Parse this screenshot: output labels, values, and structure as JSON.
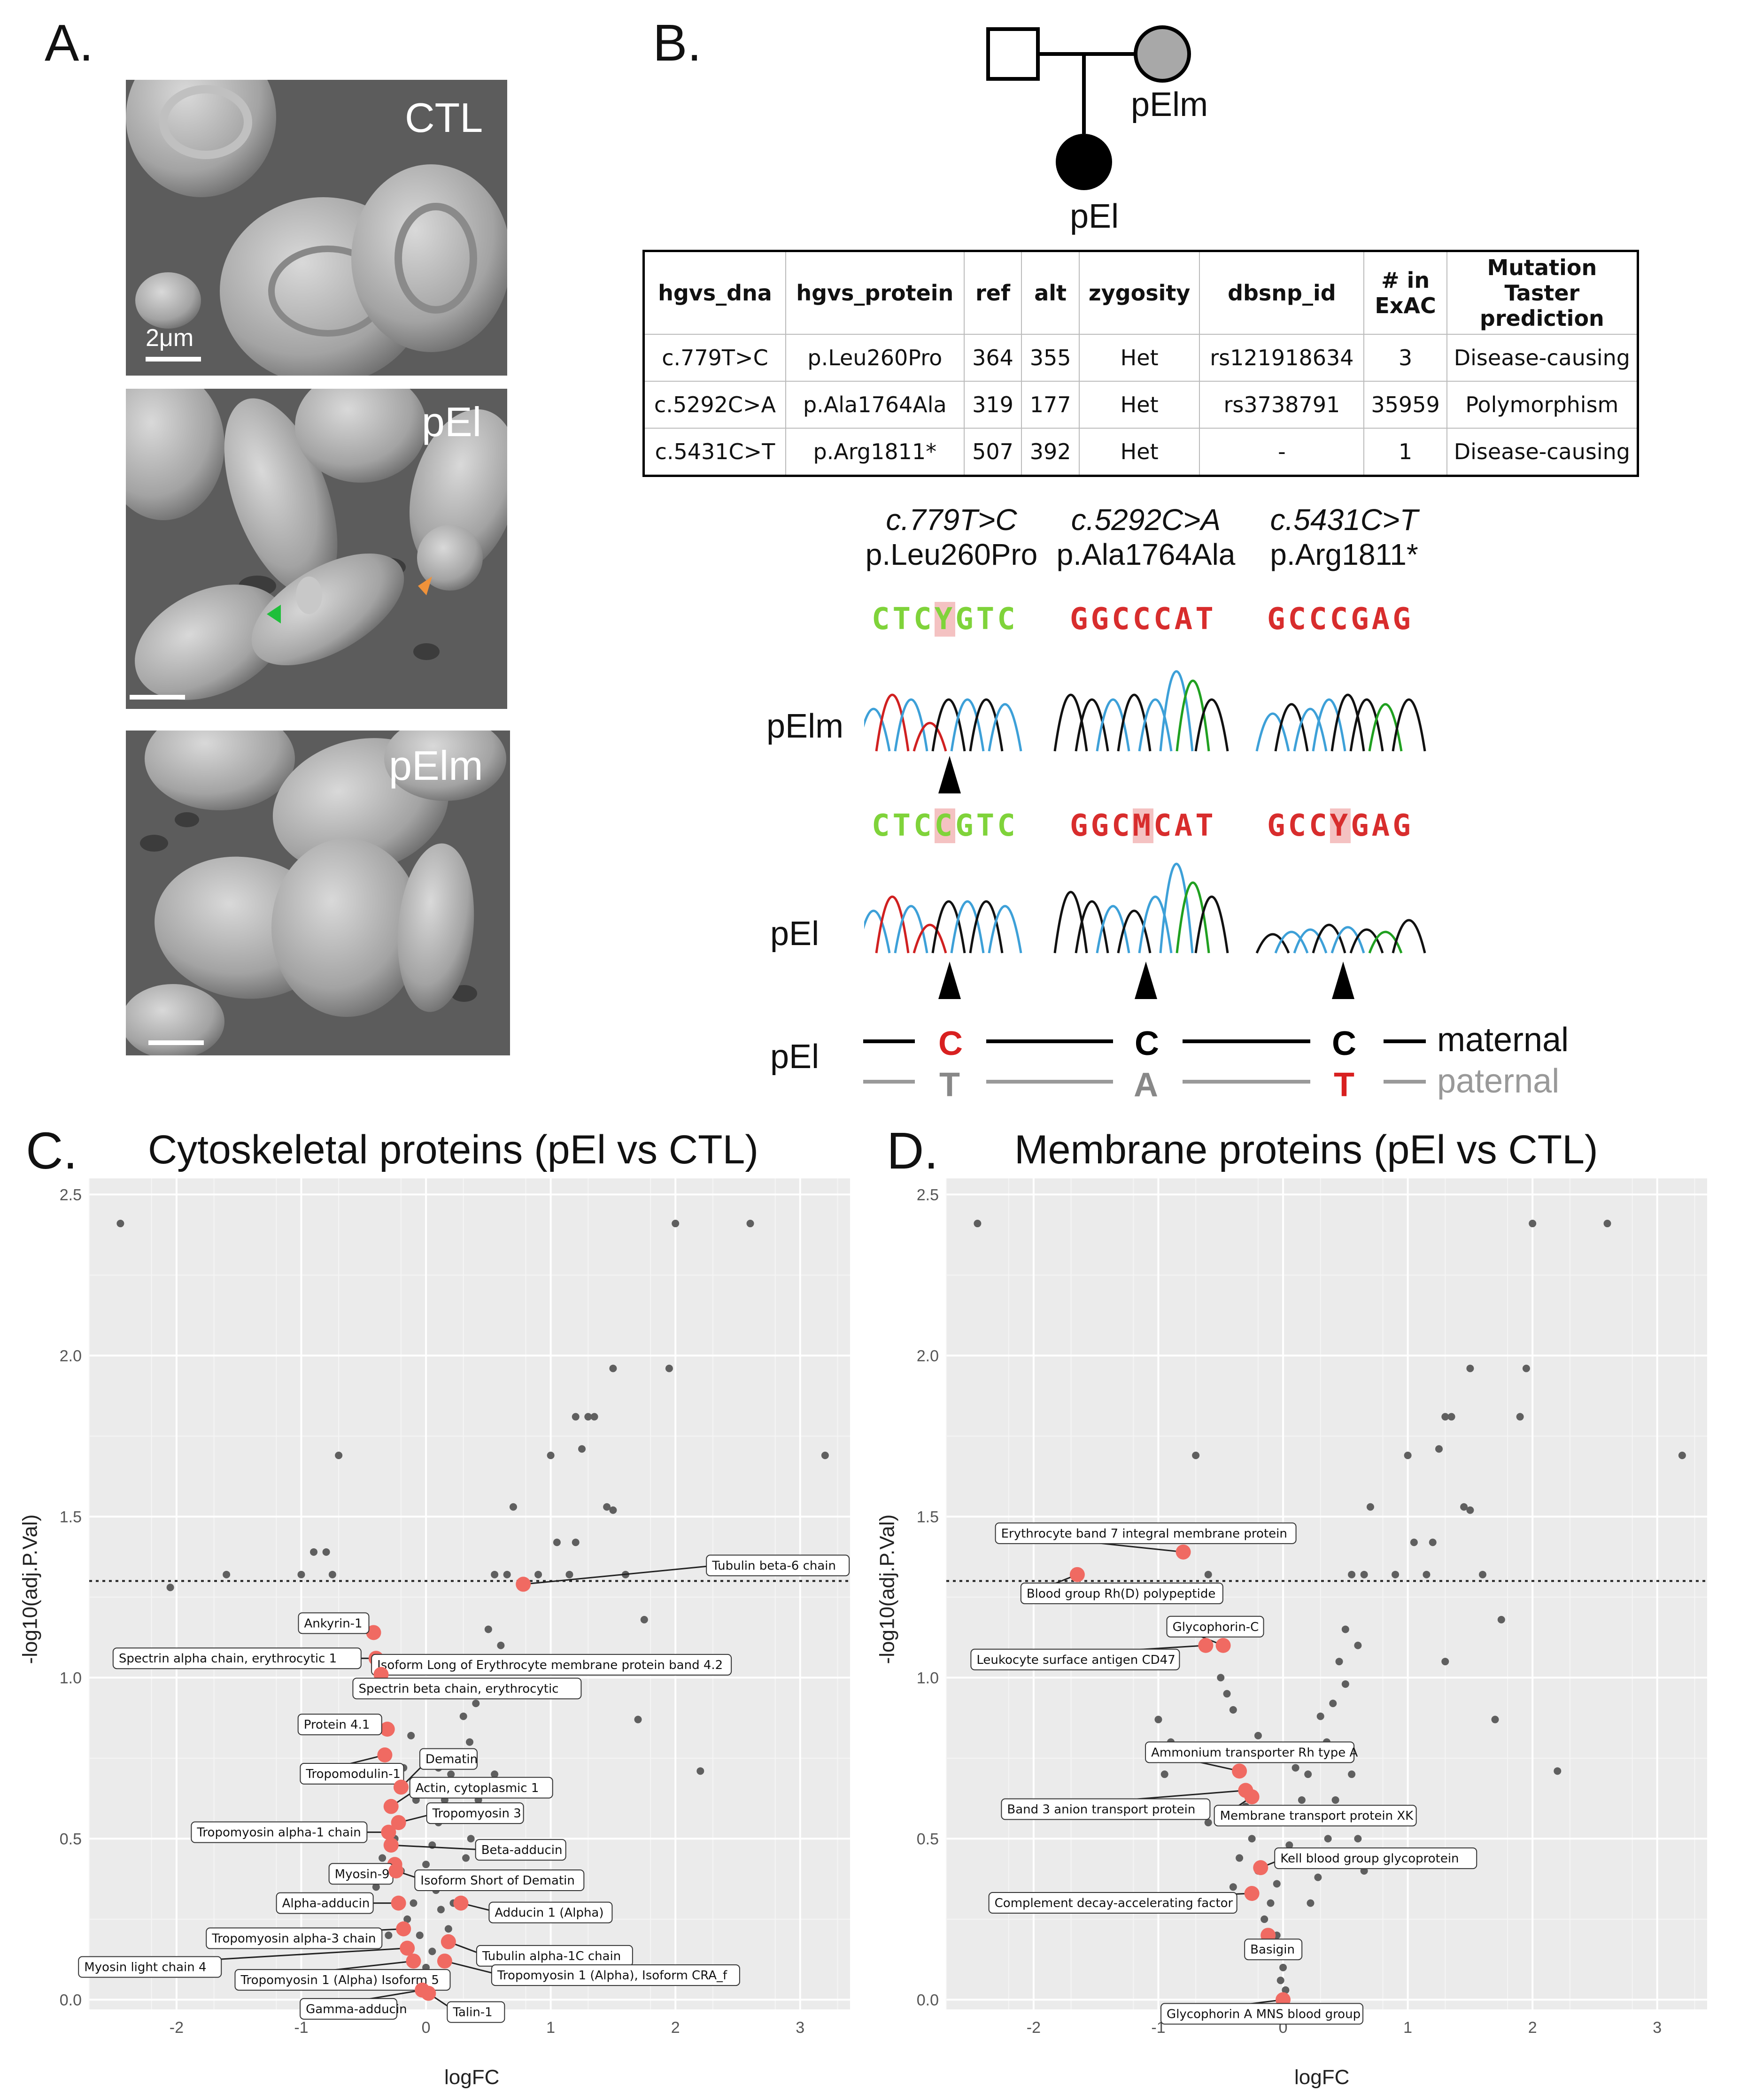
{
  "panels": {
    "a": "A.",
    "b": "B.",
    "c": "C.",
    "d": "D."
  },
  "panel_a": {
    "sem_labels": [
      "CTL",
      "pEl",
      "pElm"
    ],
    "scale_label": "2μm"
  },
  "pedigree": {
    "mother_label": "pElm",
    "proband_label": "pEl"
  },
  "variant_table": {
    "headers": [
      "hgvs_dna",
      "hgvs_protein",
      "ref",
      "alt",
      "zygosity",
      "dbsnp_id",
      "# in ExAC",
      "Mutation Taster prediction"
    ],
    "rows": [
      [
        "c.779T>C",
        "p.Leu260Pro",
        "364",
        "355",
        "Het",
        "rs121918634",
        "3",
        "Disease-causing"
      ],
      [
        "c.5292C>A",
        "p.Ala1764Ala",
        "319",
        "177",
        "Het",
        "rs3738791",
        "35959",
        "Polymorphism"
      ],
      [
        "c.5431C>T",
        "p.Arg1811*",
        "507",
        "392",
        "Het",
        "-",
        "1",
        "Disease-causing"
      ]
    ]
  },
  "variants": [
    {
      "dna": "c.779T>C",
      "protein": "p.Leu260Pro",
      "seq_pelm": [
        "CTC",
        "Y",
        "GTC"
      ],
      "seq_pel": [
        "CTC",
        "C",
        "GTC"
      ]
    },
    {
      "dna": "c.5292C>A",
      "protein": "p.Ala1764Ala",
      "seq_pelm": [
        "GGC",
        "C",
        "CAT"
      ],
      "seq_pel": [
        "GGC",
        "M",
        "CAT"
      ]
    },
    {
      "dna": "c.5431C>T",
      "protein": "p.Arg1811*",
      "seq_pelm": [
        "GCC",
        "C",
        "GAG"
      ],
      "seq_pel": [
        "GCC",
        "Y",
        "GAG"
      ]
    }
  ],
  "chromatogram_rows": {
    "row1": "pElm",
    "row2": "pEl"
  },
  "haplotype": {
    "label": "pEl",
    "maternal": [
      "C",
      "C",
      "C"
    ],
    "paternal": [
      "T",
      "A",
      "T"
    ],
    "maternal_label": "maternal",
    "paternal_label": "paternal"
  },
  "chart_data": [
    {
      "type": "scatter",
      "title": "Cytoskeletal proteins (pEl vs CTL)",
      "xlabel": "logFC",
      "ylabel": "-log10(adj.P.Val)",
      "xlim": [
        -2.7,
        3.4
      ],
      "ylim": [
        -0.03,
        2.55
      ],
      "xticks": [
        -2,
        -1,
        0,
        1,
        2,
        3
      ],
      "yticks": [
        0.0,
        0.5,
        1.0,
        1.5,
        2.0,
        2.5
      ],
      "threshold": 1.3,
      "background_points": [
        [
          -2.45,
          2.41
        ],
        [
          2.0,
          2.41
        ],
        [
          2.6,
          2.41
        ],
        [
          -0.7,
          1.69
        ],
        [
          1.0,
          1.69
        ],
        [
          3.2,
          1.69
        ],
        [
          1.5,
          1.96
        ],
        [
          1.95,
          1.96
        ],
        [
          1.3,
          1.81
        ],
        [
          1.35,
          1.81
        ],
        [
          1.25,
          1.71
        ],
        [
          1.2,
          1.81
        ],
        [
          1.45,
          1.53
        ],
        [
          1.5,
          1.52
        ],
        [
          0.7,
          1.53
        ],
        [
          1.05,
          1.42
        ],
        [
          1.2,
          1.42
        ],
        [
          0.55,
          1.32
        ],
        [
          0.65,
          1.32
        ],
        [
          0.9,
          1.32
        ],
        [
          1.15,
          1.32
        ],
        [
          1.6,
          1.32
        ],
        [
          -0.9,
          1.39
        ],
        [
          -0.8,
          1.39
        ],
        [
          -0.75,
          1.32
        ],
        [
          -1.0,
          1.32
        ],
        [
          -1.6,
          1.32
        ],
        [
          -2.05,
          1.28
        ],
        [
          1.75,
          1.18
        ],
        [
          1.9,
          1.05
        ],
        [
          1.7,
          0.87
        ],
        [
          2.2,
          0.71
        ],
        [
          0.5,
          1.15
        ],
        [
          0.6,
          1.1
        ],
        [
          0.45,
          1.05
        ],
        [
          0.5,
          0.98
        ],
        [
          0.4,
          0.92
        ],
        [
          0.3,
          0.88
        ],
        [
          0.35,
          0.8
        ],
        [
          0.25,
          0.75
        ],
        [
          0.2,
          0.7
        ],
        [
          0.15,
          0.62
        ],
        [
          0.1,
          0.55
        ],
        [
          0.05,
          0.48
        ],
        [
          0.0,
          0.42
        ],
        [
          -0.05,
          0.36
        ],
        [
          -0.1,
          0.3
        ],
        [
          -0.15,
          0.25
        ],
        [
          -0.05,
          0.2
        ],
        [
          0.05,
          0.15
        ],
        [
          0.0,
          0.1
        ],
        [
          -0.02,
          0.06
        ],
        [
          0.02,
          0.03
        ],
        [
          -0.2,
          0.4
        ],
        [
          -0.25,
          0.5
        ],
        [
          -0.3,
          0.6
        ],
        [
          -0.18,
          0.72
        ],
        [
          -0.12,
          0.82
        ],
        [
          0.08,
          0.34
        ],
        [
          0.12,
          0.28
        ],
        [
          0.18,
          0.22
        ],
        [
          0.22,
          0.3
        ],
        [
          0.28,
          0.38
        ],
        [
          0.32,
          0.44
        ],
        [
          0.36,
          0.5
        ],
        [
          -0.35,
          0.44
        ],
        [
          -0.4,
          0.35
        ],
        [
          -0.3,
          0.2
        ],
        [
          -0.08,
          0.62
        ],
        [
          0.1,
          0.72
        ],
        [
          0.42,
          0.62
        ],
        [
          0.55,
          0.7
        ]
      ],
      "highlighted": [
        {
          "x": 0.78,
          "y": 1.29,
          "label": "Tubulin beta-6 chain"
        },
        {
          "x": -0.42,
          "y": 1.14,
          "label": "Ankyrin-1"
        },
        {
          "x": -0.4,
          "y": 1.06,
          "label": "Spectrin alpha chain, erythrocytic 1"
        },
        {
          "x": -0.38,
          "y": 1.04,
          "label": "Isoform Long of Erythrocyte membrane protein band 4.2"
        },
        {
          "x": -0.36,
          "y": 1.01,
          "label": "Spectrin beta chain, erythrocytic"
        },
        {
          "x": -0.31,
          "y": 0.84,
          "label": "Protein 4.1"
        },
        {
          "x": -0.33,
          "y": 0.76,
          "label": "Tropomodulin-1"
        },
        {
          "x": -0.2,
          "y": 0.66,
          "label": "Dematin"
        },
        {
          "x": -0.28,
          "y": 0.6,
          "label": "Actin, cytoplasmic 1"
        },
        {
          "x": -0.22,
          "y": 0.55,
          "label": "Tropomyosin 3"
        },
        {
          "x": -0.3,
          "y": 0.52,
          "label": "Tropomyosin alpha-1 chain"
        },
        {
          "x": -0.28,
          "y": 0.48,
          "label": "Beta-adducin"
        },
        {
          "x": -0.25,
          "y": 0.42,
          "label": "Myosin-9"
        },
        {
          "x": -0.24,
          "y": 0.4,
          "label": "Isoform Short of Dematin"
        },
        {
          "x": 0.28,
          "y": 0.3,
          "label": "Adducin 1 (Alpha)"
        },
        {
          "x": -0.22,
          "y": 0.3,
          "label": "Alpha-adducin"
        },
        {
          "x": -0.18,
          "y": 0.22,
          "label": "Tropomyosin alpha-3 chain"
        },
        {
          "x": 0.18,
          "y": 0.18,
          "label": "Tubulin alpha-1C chain"
        },
        {
          "x": -0.15,
          "y": 0.16,
          "label": "Myosin light chain 4"
        },
        {
          "x": -0.1,
          "y": 0.12,
          "label": "Tropomyosin 1 (Alpha) Isoform 5"
        },
        {
          "x": 0.15,
          "y": 0.12,
          "label": "Tropomyosin 1 (Alpha), Isoform CRA_f"
        },
        {
          "x": -0.03,
          "y": 0.03,
          "label": "Gamma-adducin"
        },
        {
          "x": 0.02,
          "y": 0.02,
          "label": "Talin-1"
        }
      ]
    },
    {
      "type": "scatter",
      "title": "Membrane proteins (pEl vs CTL)",
      "xlabel": "logFC",
      "ylabel": "-log10(adj.P.Val)",
      "xlim": [
        -2.7,
        3.4
      ],
      "ylim": [
        -0.03,
        2.55
      ],
      "xticks": [
        -2,
        -1,
        0,
        1,
        2,
        3
      ],
      "yticks": [
        0.0,
        0.5,
        1.0,
        1.5,
        2.0,
        2.5
      ],
      "threshold": 1.3,
      "background_points": [
        [
          -2.45,
          2.41
        ],
        [
          2.0,
          2.41
        ],
        [
          2.6,
          2.41
        ],
        [
          -0.7,
          1.69
        ],
        [
          1.0,
          1.69
        ],
        [
          3.2,
          1.69
        ],
        [
          1.5,
          1.96
        ],
        [
          1.95,
          1.96
        ],
        [
          1.3,
          1.81
        ],
        [
          1.35,
          1.81
        ],
        [
          1.25,
          1.71
        ],
        [
          1.9,
          1.81
        ],
        [
          1.45,
          1.53
        ],
        [
          1.5,
          1.52
        ],
        [
          0.7,
          1.53
        ],
        [
          1.05,
          1.42
        ],
        [
          1.2,
          1.42
        ],
        [
          0.55,
          1.32
        ],
        [
          0.65,
          1.32
        ],
        [
          0.9,
          1.32
        ],
        [
          1.15,
          1.32
        ],
        [
          1.6,
          1.32
        ],
        [
          -0.6,
          1.32
        ],
        [
          1.75,
          1.18
        ],
        [
          1.3,
          1.05
        ],
        [
          1.7,
          0.87
        ],
        [
          2.2,
          0.71
        ],
        [
          -1.0,
          0.87
        ],
        [
          -0.9,
          0.8
        ],
        [
          -0.95,
          0.7
        ],
        [
          0.5,
          1.15
        ],
        [
          0.6,
          1.1
        ],
        [
          0.45,
          1.05
        ],
        [
          0.5,
          0.98
        ],
        [
          0.4,
          0.92
        ],
        [
          0.3,
          0.88
        ],
        [
          0.35,
          0.8
        ],
        [
          0.25,
          0.75
        ],
        [
          0.2,
          0.7
        ],
        [
          0.15,
          0.62
        ],
        [
          0.1,
          0.55
        ],
        [
          0.05,
          0.48
        ],
        [
          0.0,
          0.42
        ],
        [
          -0.05,
          0.36
        ],
        [
          -0.1,
          0.3
        ],
        [
          -0.15,
          0.25
        ],
        [
          -0.05,
          0.2
        ],
        [
          0.05,
          0.15
        ],
        [
          0.0,
          0.1
        ],
        [
          -0.02,
          0.06
        ],
        [
          0.02,
          0.03
        ],
        [
          -0.2,
          0.4
        ],
        [
          -0.25,
          0.5
        ],
        [
          -0.3,
          0.6
        ],
        [
          -0.4,
          0.9
        ],
        [
          -0.5,
          1.0
        ],
        [
          -0.45,
          0.95
        ],
        [
          -0.2,
          0.82
        ],
        [
          0.1,
          0.72
        ],
        [
          0.42,
          0.62
        ],
        [
          0.55,
          0.7
        ],
        [
          -0.35,
          0.44
        ],
        [
          -0.4,
          0.35
        ],
        [
          0.22,
          0.3
        ],
        [
          0.28,
          0.38
        ],
        [
          0.32,
          0.44
        ],
        [
          0.36,
          0.5
        ],
        [
          -0.6,
          0.55
        ],
        [
          0.6,
          0.5
        ],
        [
          0.65,
          0.4
        ]
      ],
      "highlighted": [
        {
          "x": -0.8,
          "y": 1.39,
          "label": "Erythrocyte band 7 integral membrane protein"
        },
        {
          "x": -1.65,
          "y": 1.32,
          "label": "Blood group Rh(D) polypeptide"
        },
        {
          "x": -0.48,
          "y": 1.1,
          "label": "Glycophorin-C"
        },
        {
          "x": -0.62,
          "y": 1.1,
          "label": "Leukocyte surface antigen CD47"
        },
        {
          "x": -0.35,
          "y": 0.71,
          "label": "Ammonium transporter Rh type A"
        },
        {
          "x": -0.3,
          "y": 0.65,
          "label": "Band 3 anion transport protein"
        },
        {
          "x": -0.25,
          "y": 0.63,
          "label": "Membrane transport protein XK"
        },
        {
          "x": -0.18,
          "y": 0.41,
          "label": "Kell blood group glycoprotein"
        },
        {
          "x": -0.25,
          "y": 0.33,
          "label": "Complement decay-accelerating factor"
        },
        {
          "x": -0.12,
          "y": 0.2,
          "label": "Basigin"
        },
        {
          "x": 0.0,
          "y": 0.0,
          "label": "Glycophorin A MNS blood group"
        }
      ]
    }
  ]
}
